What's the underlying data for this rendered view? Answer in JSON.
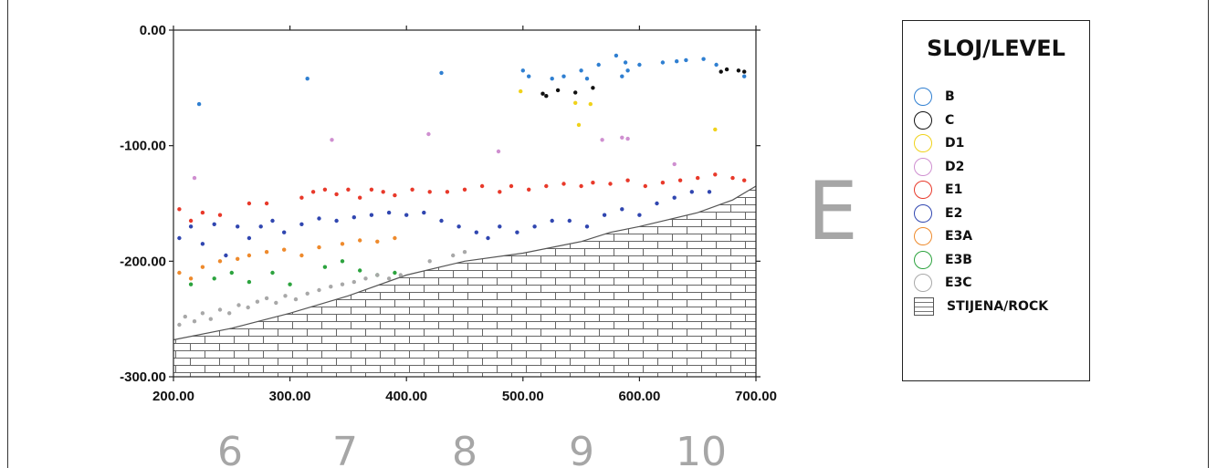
{
  "chart_data": {
    "type": "scatter",
    "x_ticks": [
      "200.00",
      "300.00",
      "400.00",
      "500.00",
      "600.00",
      "700.00"
    ],
    "y_ticks": [
      "0.00",
      "-100.00",
      "-200.00",
      "-300.00"
    ],
    "xlim": [
      200,
      700
    ],
    "ylim": [
      -300,
      0
    ],
    "section_labels": [
      "6",
      "7",
      "8",
      "9",
      "10"
    ],
    "section_letter": "E",
    "legend": {
      "title": "SLOJ/LEVEL",
      "items": [
        {
          "name": "B",
          "color": "#2f7fd1"
        },
        {
          "name": "C",
          "color": "#111111"
        },
        {
          "name": "D1",
          "color": "#f0d21a"
        },
        {
          "name": "D2",
          "color": "#cf8fd0"
        },
        {
          "name": "E1",
          "color": "#e8392a"
        },
        {
          "name": "E2",
          "color": "#3046b0"
        },
        {
          "name": "E3A",
          "color": "#ee8a2c"
        },
        {
          "name": "E3B",
          "color": "#2ca33e"
        },
        {
          "name": "E3C",
          "color": "#a8a8a8"
        }
      ],
      "rock_label": "STIJENA/ROCK"
    },
    "rock_boundary": [
      [
        200,
        -268
      ],
      [
        250,
        -258
      ],
      [
        300,
        -245
      ],
      [
        350,
        -230
      ],
      [
        400,
        -212
      ],
      [
        450,
        -200
      ],
      [
        500,
        -193
      ],
      [
        550,
        -183
      ],
      [
        575,
        -175
      ],
      [
        600,
        -170
      ],
      [
        650,
        -158
      ],
      [
        680,
        -147
      ],
      [
        700,
        -135
      ]
    ],
    "series": [
      {
        "name": "B",
        "color": "#2f7fd1",
        "points": [
          [
            222,
            -64
          ],
          [
            315,
            -42
          ],
          [
            430,
            -37
          ],
          [
            500,
            -35
          ],
          [
            505,
            -40
          ],
          [
            525,
            -42
          ],
          [
            535,
            -40
          ],
          [
            550,
            -35
          ],
          [
            555,
            -42
          ],
          [
            565,
            -30
          ],
          [
            580,
            -22
          ],
          [
            585,
            -40
          ],
          [
            588,
            -28
          ],
          [
            590,
            -35
          ],
          [
            600,
            -30
          ],
          [
            620,
            -28
          ],
          [
            632,
            -27
          ],
          [
            640,
            -26
          ],
          [
            655,
            -25
          ],
          [
            666,
            -30
          ],
          [
            690,
            -40
          ]
        ]
      },
      {
        "name": "C",
        "color": "#111111",
        "points": [
          [
            517,
            -55
          ],
          [
            520,
            -57
          ],
          [
            530,
            -52
          ],
          [
            545,
            -54
          ],
          [
            560,
            -50
          ],
          [
            670,
            -36
          ],
          [
            675,
            -34
          ],
          [
            685,
            -35
          ],
          [
            690,
            -36
          ]
        ]
      },
      {
        "name": "D1",
        "color": "#f0d21a",
        "points": [
          [
            498,
            -53
          ],
          [
            545,
            -63
          ],
          [
            548,
            -82
          ],
          [
            558,
            -64
          ],
          [
            665,
            -86
          ]
        ]
      },
      {
        "name": "D2",
        "color": "#cf8fd0",
        "points": [
          [
            218,
            -128
          ],
          [
            336,
            -95
          ],
          [
            419,
            -90
          ],
          [
            479,
            -105
          ],
          [
            568,
            -95
          ],
          [
            585,
            -93
          ],
          [
            590,
            -94
          ],
          [
            630,
            -116
          ]
        ]
      },
      {
        "name": "E1",
        "color": "#e8392a",
        "points": [
          [
            205,
            -155
          ],
          [
            215,
            -165
          ],
          [
            225,
            -158
          ],
          [
            240,
            -160
          ],
          [
            265,
            -150
          ],
          [
            280,
            -150
          ],
          [
            310,
            -145
          ],
          [
            320,
            -140
          ],
          [
            330,
            -138
          ],
          [
            340,
            -142
          ],
          [
            350,
            -138
          ],
          [
            360,
            -145
          ],
          [
            370,
            -138
          ],
          [
            380,
            -140
          ],
          [
            390,
            -143
          ],
          [
            405,
            -138
          ],
          [
            420,
            -140
          ],
          [
            435,
            -140
          ],
          [
            450,
            -138
          ],
          [
            465,
            -135
          ],
          [
            480,
            -140
          ],
          [
            490,
            -135
          ],
          [
            505,
            -138
          ],
          [
            520,
            -135
          ],
          [
            535,
            -133
          ],
          [
            550,
            -135
          ],
          [
            560,
            -132
          ],
          [
            575,
            -133
          ],
          [
            590,
            -130
          ],
          [
            605,
            -135
          ],
          [
            620,
            -132
          ],
          [
            635,
            -130
          ],
          [
            650,
            -128
          ],
          [
            665,
            -125
          ],
          [
            680,
            -128
          ],
          [
            690,
            -130
          ]
        ]
      },
      {
        "name": "E2",
        "color": "#3046b0",
        "points": [
          [
            205,
            -180
          ],
          [
            215,
            -170
          ],
          [
            225,
            -185
          ],
          [
            235,
            -168
          ],
          [
            245,
            -195
          ],
          [
            255,
            -170
          ],
          [
            265,
            -180
          ],
          [
            275,
            -170
          ],
          [
            285,
            -165
          ],
          [
            295,
            -175
          ],
          [
            310,
            -168
          ],
          [
            325,
            -163
          ],
          [
            340,
            -165
          ],
          [
            355,
            -162
          ],
          [
            370,
            -160
          ],
          [
            385,
            -158
          ],
          [
            400,
            -160
          ],
          [
            415,
            -158
          ],
          [
            430,
            -165
          ],
          [
            445,
            -170
          ],
          [
            460,
            -175
          ],
          [
            470,
            -180
          ],
          [
            480,
            -170
          ],
          [
            495,
            -175
          ],
          [
            510,
            -170
          ],
          [
            525,
            -165
          ],
          [
            540,
            -165
          ],
          [
            555,
            -170
          ],
          [
            570,
            -160
          ],
          [
            585,
            -155
          ],
          [
            600,
            -160
          ],
          [
            615,
            -150
          ],
          [
            630,
            -145
          ],
          [
            645,
            -140
          ],
          [
            660,
            -140
          ]
        ]
      },
      {
        "name": "E3A",
        "color": "#ee8a2c",
        "points": [
          [
            205,
            -210
          ],
          [
            215,
            -215
          ],
          [
            225,
            -205
          ],
          [
            240,
            -200
          ],
          [
            255,
            -198
          ],
          [
            265,
            -195
          ],
          [
            280,
            -192
          ],
          [
            295,
            -190
          ],
          [
            310,
            -195
          ],
          [
            325,
            -188
          ],
          [
            345,
            -185
          ],
          [
            360,
            -182
          ],
          [
            375,
            -183
          ],
          [
            390,
            -180
          ]
        ]
      },
      {
        "name": "E3B",
        "color": "#2ca33e",
        "points": [
          [
            215,
            -220
          ],
          [
            235,
            -215
          ],
          [
            250,
            -210
          ],
          [
            265,
            -218
          ],
          [
            285,
            -210
          ],
          [
            300,
            -220
          ],
          [
            330,
            -205
          ],
          [
            345,
            -200
          ],
          [
            360,
            -208
          ],
          [
            375,
            -212
          ],
          [
            390,
            -210
          ]
        ]
      },
      {
        "name": "E3C",
        "color": "#a8a8a8",
        "points": [
          [
            205,
            -255
          ],
          [
            210,
            -248
          ],
          [
            218,
            -252
          ],
          [
            225,
            -245
          ],
          [
            232,
            -250
          ],
          [
            240,
            -242
          ],
          [
            248,
            -245
          ],
          [
            256,
            -238
          ],
          [
            264,
            -240
          ],
          [
            272,
            -235
          ],
          [
            280,
            -232
          ],
          [
            288,
            -236
          ],
          [
            296,
            -230
          ],
          [
            305,
            -233
          ],
          [
            315,
            -228
          ],
          [
            325,
            -225
          ],
          [
            335,
            -222
          ],
          [
            345,
            -220
          ],
          [
            355,
            -218
          ],
          [
            365,
            -215
          ],
          [
            375,
            -212
          ],
          [
            385,
            -215
          ],
          [
            395,
            -212
          ],
          [
            420,
            -200
          ],
          [
            440,
            -195
          ],
          [
            450,
            -192
          ]
        ]
      }
    ]
  }
}
